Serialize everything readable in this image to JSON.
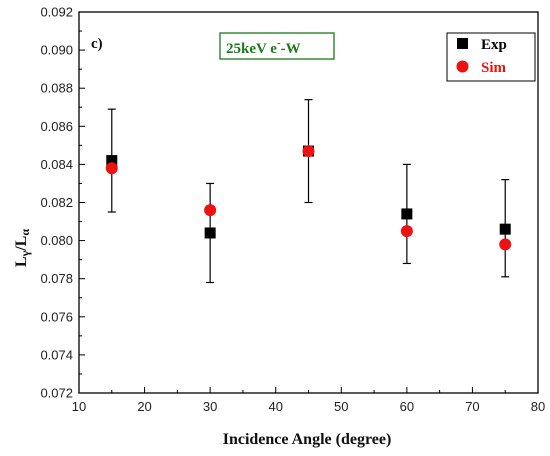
{
  "chart_data": {
    "type": "scatter",
    "panel_label": "c)",
    "annotation": {
      "text_main": "25keV e",
      "text_sup": "-",
      "text_tail": "-W",
      "color": "#1a7a1a"
    },
    "xlabel": "Incidence Angle (degree)",
    "ylabel_main": "L",
    "ylabel_sub1": "γ",
    "ylabel_mid": "/L",
    "ylabel_sub2": "α",
    "xlim": [
      10,
      80
    ],
    "ylim": [
      0.072,
      0.092
    ],
    "xticks": [
      10,
      20,
      30,
      40,
      50,
      60,
      70,
      80
    ],
    "xtick_labels": [
      "10",
      "20",
      "30",
      "40",
      "50",
      "60",
      "70",
      "80"
    ],
    "yticks": [
      0.072,
      0.074,
      0.076,
      0.078,
      0.08,
      0.082,
      0.084,
      0.086,
      0.088,
      0.09,
      0.092
    ],
    "ytick_labels": [
      "0.072",
      "0.074",
      "0.076",
      "0.078",
      "0.080",
      "0.082",
      "0.084",
      "0.086",
      "0.088",
      "0.090",
      "0.092"
    ],
    "legend_position": "top-right",
    "series": [
      {
        "name": "Exp",
        "marker": "square",
        "color": "#000000",
        "x": [
          15,
          30,
          45,
          60,
          75
        ],
        "y": [
          0.0842,
          0.0804,
          0.0847,
          0.0814,
          0.0806
        ],
        "err_low": [
          0.0815,
          0.0778,
          0.082,
          0.0788,
          0.0781
        ],
        "err_high": [
          0.0869,
          0.083,
          0.0874,
          0.084,
          0.0832
        ]
      },
      {
        "name": "Sim",
        "marker": "circle",
        "color": "#ee1111",
        "x": [
          15,
          30,
          45,
          60,
          75
        ],
        "y": [
          0.0838,
          0.0816,
          0.0847,
          0.0805,
          0.0798
        ]
      }
    ]
  }
}
